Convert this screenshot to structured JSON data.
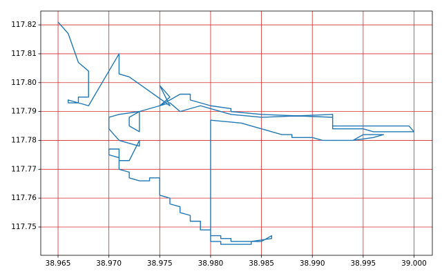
{
  "chart_data": {
    "type": "line",
    "color": "#1f77b4",
    "grid": true,
    "grid_color": "#d62728",
    "x": [
      38.965,
      38.966,
      38.967,
      38.968,
      38.968,
      38.967,
      38.967,
      38.966,
      38.966,
      38.968,
      38.971,
      38.971,
      38.971,
      38.972,
      38.976,
      38.975,
      38.976,
      38.975,
      38.977,
      38.978,
      38.978,
      38.98,
      38.982,
      38.982,
      38.985,
      38.992,
      38.992,
      38.995,
      38.9995,
      39.0,
      38.996,
      38.995,
      38.992,
      38.992,
      38.985,
      38.982,
      38.98,
      38.979,
      38.977,
      38.976,
      38.975,
      38.973,
      38.973,
      38.972,
      38.972,
      38.973,
      38.971,
      38.97,
      38.97,
      38.971,
      38.972,
      38.973,
      38.973,
      38.972,
      38.971,
      38.971,
      38.97,
      38.97,
      38.971,
      38.971,
      38.972,
      38.972,
      38.973,
      38.974,
      38.974,
      38.975,
      38.975,
      38.976,
      38.976,
      38.977,
      38.977,
      38.978,
      38.978,
      38.979,
      38.979,
      38.98,
      38.98,
      38.981,
      38.981,
      38.982,
      38.982,
      38.985,
      38.986,
      38.986,
      38.984,
      38.984,
      38.981,
      38.981,
      38.98,
      38.98,
      38.983,
      38.984,
      38.985,
      38.987,
      38.988,
      38.988,
      38.99,
      38.991,
      38.994,
      38.996,
      38.997,
      38.995,
      38.994
    ],
    "values": [
      117.821,
      117.817,
      117.807,
      117.804,
      117.795,
      117.795,
      117.793,
      117.793,
      117.794,
      117.792,
      117.81,
      117.803,
      117.803,
      117.802,
      117.792,
      117.799,
      117.795,
      117.792,
      117.796,
      117.796,
      117.794,
      117.792,
      117.791,
      117.79,
      117.789,
      117.788,
      117.785,
      117.785,
      117.785,
      117.783,
      117.783,
      117.784,
      117.784,
      117.789,
      117.788,
      117.789,
      117.791,
      117.792,
      117.79,
      117.793,
      117.792,
      117.79,
      117.783,
      117.785,
      117.788,
      117.79,
      117.789,
      117.788,
      117.784,
      117.78,
      117.779,
      117.778,
      117.78,
      117.773,
      117.773,
      117.777,
      117.777,
      117.775,
      117.774,
      117.77,
      117.769,
      117.767,
      117.766,
      117.766,
      117.767,
      117.767,
      117.761,
      117.76,
      117.758,
      117.757,
      117.755,
      117.754,
      117.752,
      117.752,
      117.749,
      117.749,
      117.747,
      117.747,
      117.746,
      117.746,
      117.745,
      117.745,
      117.747,
      117.746,
      117.745,
      117.744,
      117.744,
      117.745,
      117.745,
      117.787,
      117.786,
      117.785,
      117.784,
      117.782,
      117.782,
      117.781,
      117.781,
      117.78,
      117.78,
      117.781,
      117.782,
      117.782,
      117.78
    ],
    "xlim": [
      38.9633,
      39.0018
    ],
    "ylim": [
      117.7402,
      117.8248
    ],
    "xticks": [
      {
        "value": 38.965,
        "label": "38.965"
      },
      {
        "value": 38.97,
        "label": "38.970"
      },
      {
        "value": 38.975,
        "label": "38.975"
      },
      {
        "value": 38.98,
        "label": "38.980"
      },
      {
        "value": 38.985,
        "label": "38.985"
      },
      {
        "value": 38.99,
        "label": "38.990"
      },
      {
        "value": 38.995,
        "label": "38.995"
      },
      {
        "value": 39.0,
        "label": "39.000"
      }
    ],
    "yticks": [
      {
        "value": 117.75,
        "label": "117.75"
      },
      {
        "value": 117.76,
        "label": "117.76"
      },
      {
        "value": 117.77,
        "label": "117.77"
      },
      {
        "value": 117.78,
        "label": "117.78"
      },
      {
        "value": 117.79,
        "label": "117.79"
      },
      {
        "value": 117.8,
        "label": "117.80"
      },
      {
        "value": 117.81,
        "label": "117.81"
      },
      {
        "value": 117.82,
        "label": "117.82"
      }
    ]
  }
}
